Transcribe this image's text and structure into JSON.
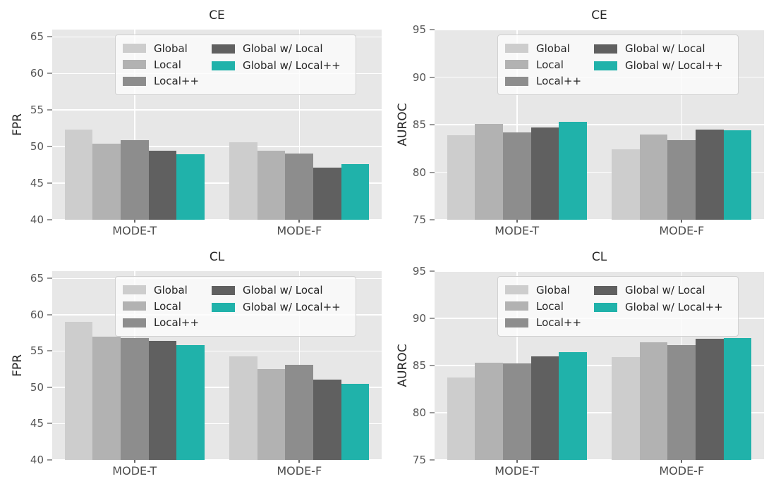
{
  "figure": {
    "background": "#ffffff",
    "plot_background": "#e7e7e7",
    "gridline_color": "#ffffff",
    "tick_label_color": "#555555",
    "accent_color": "#20b2aa",
    "series_styles": [
      {
        "name": "Global",
        "color": "#cdcdcd"
      },
      {
        "name": "Local",
        "color": "#b2b2b2"
      },
      {
        "name": "Local++",
        "color": "#8d8d8d"
      },
      {
        "name": "Global w/ Local",
        "color": "#606060"
      },
      {
        "name": "Global w/ Local++",
        "color": "#20b2aa"
      }
    ]
  },
  "chart_data": [
    {
      "type": "bar",
      "title": "CE",
      "xlabel": "",
      "ylabel": "FPR",
      "categories": [
        "MODE-T",
        "MODE-F"
      ],
      "ylim": [
        40,
        66
      ],
      "yticks": [
        40,
        45,
        50,
        55,
        60,
        65
      ],
      "grid": true,
      "legend_location": "upper center",
      "legend": [
        "Global",
        "Local",
        "Local++",
        "Global w/ Local",
        "Global w/ Local++"
      ],
      "series": [
        {
          "name": "Global",
          "values": [
            52.3,
            50.6
          ]
        },
        {
          "name": "Local",
          "values": [
            50.4,
            49.4
          ]
        },
        {
          "name": "Local++",
          "values": [
            50.9,
            49.1
          ]
        },
        {
          "name": "Global w/ Local",
          "values": [
            49.4,
            47.1
          ]
        },
        {
          "name": "Global w/ Local++",
          "values": [
            49.0,
            47.6
          ]
        }
      ]
    },
    {
      "type": "bar",
      "title": "CE",
      "xlabel": "",
      "ylabel": "AUROC",
      "categories": [
        "MODE-T",
        "MODE-F"
      ],
      "ylim": [
        75,
        95
      ],
      "yticks": [
        75,
        80,
        85,
        90,
        95
      ],
      "grid": true,
      "legend_location": "upper center",
      "legend": [
        "Global",
        "Local",
        "Local++",
        "Global w/ Local",
        "Global w/ Local++"
      ],
      "series": [
        {
          "name": "Global",
          "values": [
            83.9,
            82.4
          ]
        },
        {
          "name": "Local",
          "values": [
            85.1,
            84.0
          ]
        },
        {
          "name": "Local++",
          "values": [
            84.2,
            83.4
          ]
        },
        {
          "name": "Global w/ Local",
          "values": [
            84.7,
            84.5
          ]
        },
        {
          "name": "Global w/ Local++",
          "values": [
            85.3,
            84.4
          ]
        }
      ]
    },
    {
      "type": "bar",
      "title": "CL",
      "xlabel": "",
      "ylabel": "FPR",
      "categories": [
        "MODE-T",
        "MODE-F"
      ],
      "ylim": [
        40,
        66
      ],
      "yticks": [
        40,
        45,
        50,
        55,
        60,
        65
      ],
      "grid": true,
      "legend_location": "upper center",
      "legend": [
        "Global",
        "Local",
        "Local++",
        "Global w/ Local",
        "Global w/ Local++"
      ],
      "series": [
        {
          "name": "Global",
          "values": [
            59.0,
            54.3
          ]
        },
        {
          "name": "Local",
          "values": [
            57.0,
            52.5
          ]
        },
        {
          "name": "Local++",
          "values": [
            56.8,
            53.1
          ]
        },
        {
          "name": "Global w/ Local",
          "values": [
            56.4,
            51.1
          ]
        },
        {
          "name": "Global w/ Local++",
          "values": [
            55.8,
            50.5
          ]
        }
      ]
    },
    {
      "type": "bar",
      "title": "CL",
      "xlabel": "",
      "ylabel": "AUROC",
      "categories": [
        "MODE-T",
        "MODE-F"
      ],
      "ylim": [
        75,
        95
      ],
      "yticks": [
        75,
        80,
        85,
        90,
        95
      ],
      "grid": true,
      "legend_location": "upper center",
      "legend": [
        "Global",
        "Local",
        "Local++",
        "Global w/ Local",
        "Global w/ Local++"
      ],
      "series": [
        {
          "name": "Global",
          "values": [
            83.7,
            85.9
          ]
        },
        {
          "name": "Local",
          "values": [
            85.3,
            87.5
          ]
        },
        {
          "name": "Local++",
          "values": [
            85.2,
            87.2
          ]
        },
        {
          "name": "Global w/ Local",
          "values": [
            86.0,
            87.8
          ]
        },
        {
          "name": "Global w/ Local++",
          "values": [
            86.4,
            87.9
          ]
        }
      ]
    }
  ]
}
